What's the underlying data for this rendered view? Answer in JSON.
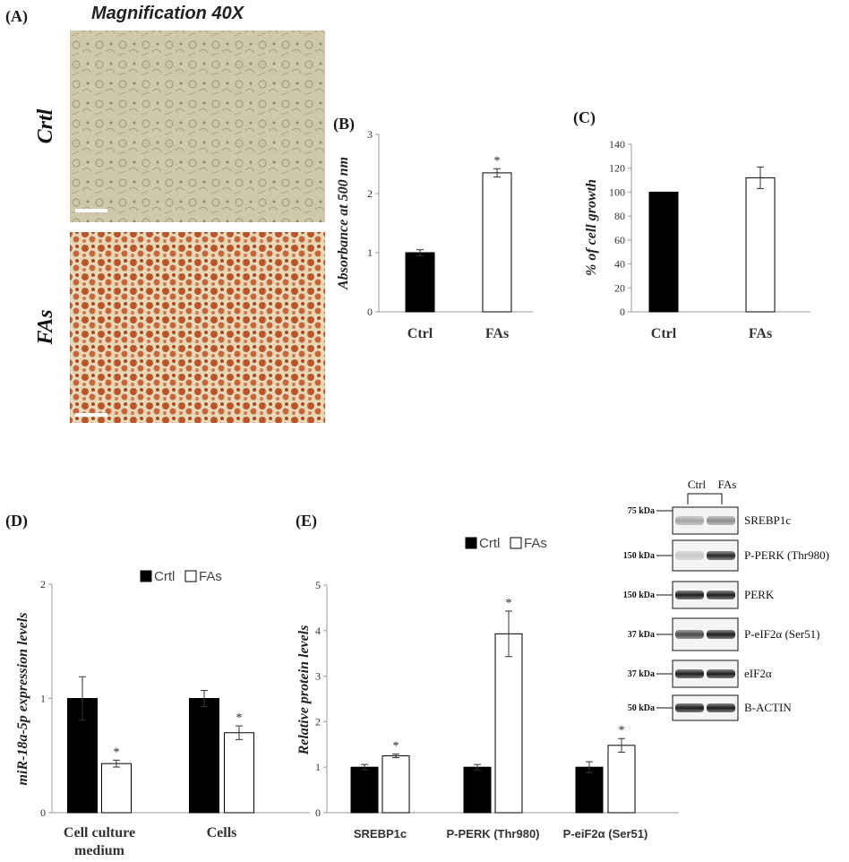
{
  "panelA": {
    "label": "(A)",
    "magnification": "Magnification 40X",
    "row_labels": [
      "Crtl",
      "FAs"
    ]
  },
  "chart_data": [
    {
      "panel": "(B)",
      "type": "bar",
      "categories": [
        "Ctrl",
        "FAs"
      ],
      "values": [
        1.0,
        2.35
      ],
      "errors": [
        0.05,
        0.07
      ],
      "significance": [
        "",
        "*"
      ],
      "ylabel": "Absorbance at 500 nm",
      "ylim": [
        0,
        3
      ],
      "yticks": [
        0,
        1,
        2,
        3
      ],
      "bar_colors": [
        "#000000",
        "#ffffff"
      ]
    },
    {
      "panel": "(C)",
      "type": "bar",
      "categories": [
        "Ctrl",
        "FAs"
      ],
      "values": [
        100,
        112
      ],
      "errors": [
        0,
        9
      ],
      "significance": [
        "",
        ""
      ],
      "ylabel": "% of cell growth",
      "ylim": [
        0,
        140
      ],
      "yticks": [
        0,
        20,
        40,
        60,
        80,
        100,
        120,
        140
      ],
      "bar_colors": [
        "#000000",
        "#ffffff"
      ]
    },
    {
      "panel": "(D)",
      "type": "bar",
      "categories": [
        [
          "Cell culture",
          "medium"
        ],
        [
          "Cells"
        ]
      ],
      "series": [
        {
          "name": "Crtl",
          "values": [
            1.0,
            1.0
          ],
          "errors": [
            0.19,
            0.07
          ],
          "significance": [
            "",
            ""
          ],
          "color": "#000000"
        },
        {
          "name": "FAs",
          "values": [
            0.43,
            0.7
          ],
          "errors": [
            0.03,
            0.06
          ],
          "significance": [
            "*",
            "*"
          ],
          "color": "#ffffff"
        }
      ],
      "ylabel": "miR-18a-5p expression levels",
      "ylim": [
        0,
        2
      ],
      "yticks": [
        0,
        1,
        2
      ],
      "legend": "top-center"
    },
    {
      "panel": "(E)",
      "type": "bar",
      "categories": [
        [
          "SREBP1c"
        ],
        [
          "P-PERK (Thr980)"
        ],
        [
          "P-eiF2α (Ser51)"
        ]
      ],
      "series": [
        {
          "name": "Crtl",
          "values": [
            1.0,
            1.0,
            1.0
          ],
          "errors": [
            0.06,
            0.06,
            0.12
          ],
          "significance": [
            "",
            "",
            ""
          ],
          "color": "#000000"
        },
        {
          "name": "FAs",
          "values": [
            1.25,
            3.93,
            1.48
          ],
          "errors": [
            0.04,
            0.5,
            0.15
          ],
          "significance": [
            "*",
            "*",
            "*"
          ],
          "color": "#ffffff"
        }
      ],
      "ylabel": "Relative protein levels",
      "ylim": [
        0,
        5
      ],
      "yticks": [
        0,
        1,
        2,
        3,
        4,
        5
      ],
      "legend": "top-center"
    }
  ],
  "blot": {
    "group_labels": [
      "Ctrl",
      "FAs"
    ],
    "rows": [
      {
        "kda": "75 kDa",
        "protein": "SREBP1c"
      },
      {
        "kda": "150 kDa",
        "protein": "P-PERK (Thr980)"
      },
      {
        "kda": "150 kDa",
        "protein": "PERK"
      },
      {
        "kda": "37 kDa",
        "protein": "P-eIF2α (Ser51)"
      },
      {
        "kda": "37 kDa",
        "protein": "eIF2α"
      },
      {
        "kda": "50 kDa",
        "protein": "B-ACTIN"
      }
    ]
  }
}
